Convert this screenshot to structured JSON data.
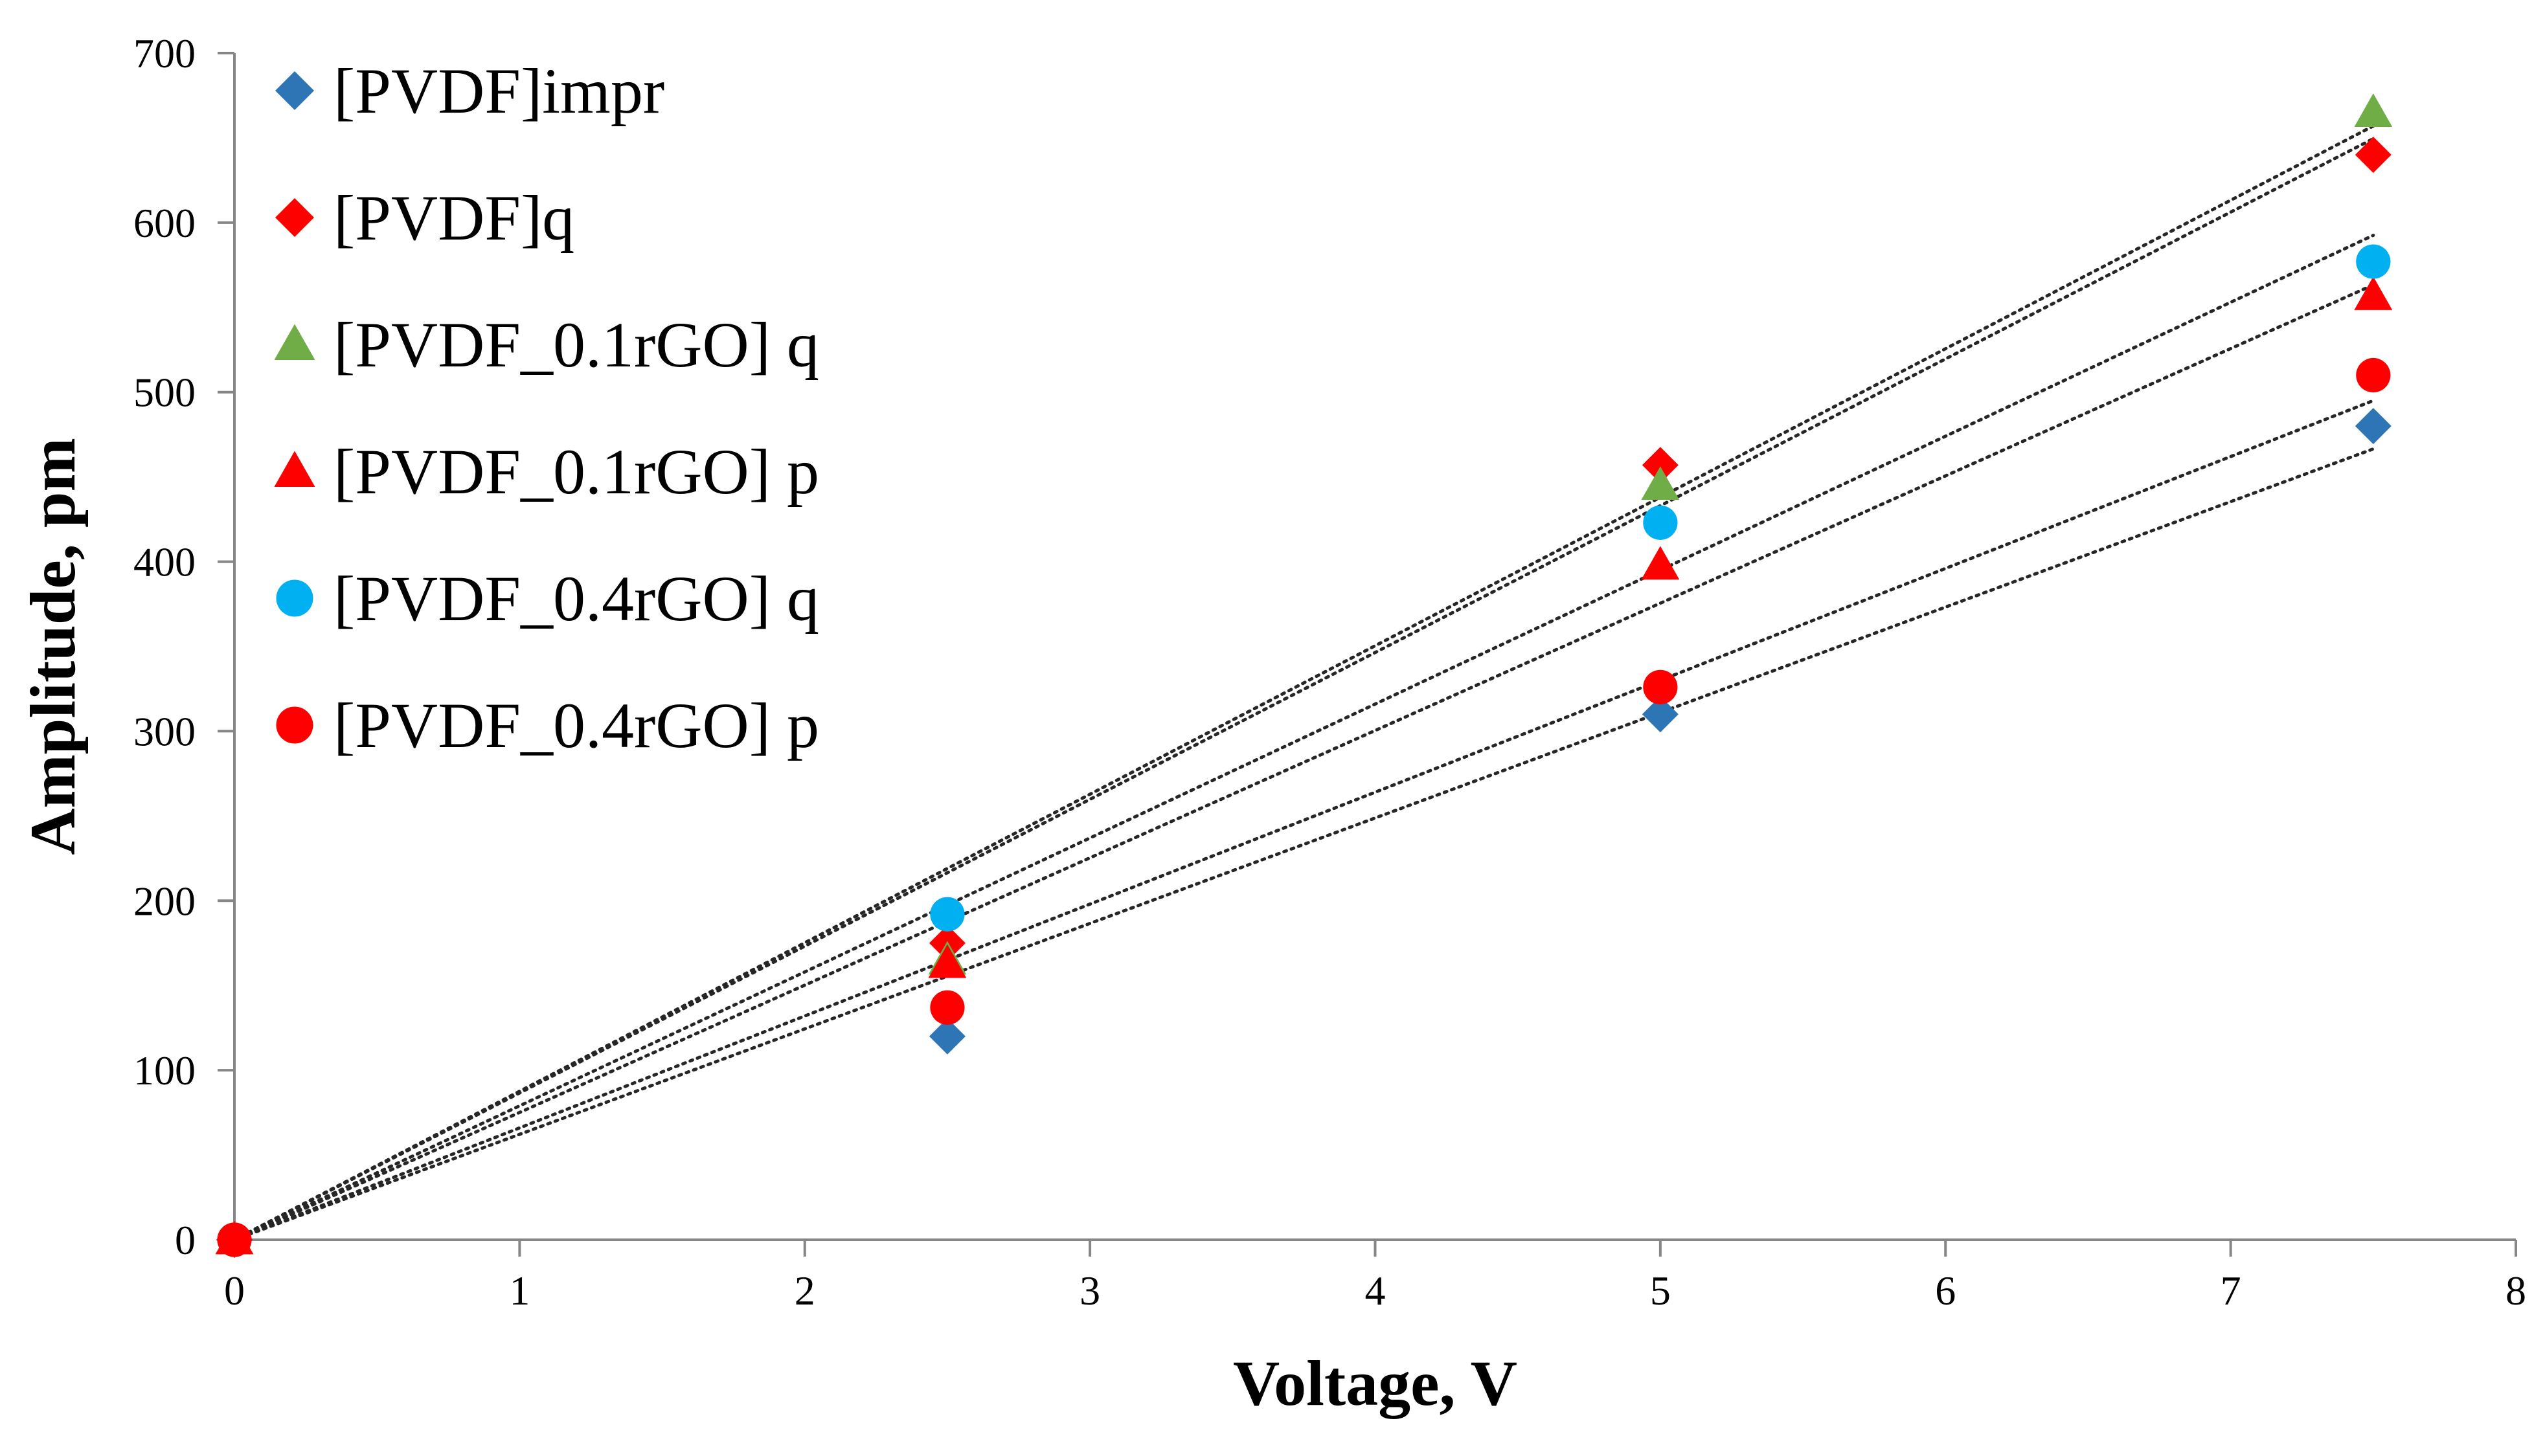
{
  "chart_data": {
    "type": "scatter",
    "title": "",
    "xlabel": "Voltage, V",
    "ylabel": "Amplitude, pm",
    "xlim": [
      0,
      8
    ],
    "ylim": [
      0,
      700
    ],
    "xticks": [
      0,
      1,
      2,
      3,
      4,
      5,
      6,
      7,
      8
    ],
    "yticks": [
      0,
      100,
      200,
      300,
      400,
      500,
      600,
      700
    ],
    "grid": false,
    "legend_position": "top-left",
    "x": [
      0,
      2.5,
      5,
      7.5
    ],
    "series": [
      {
        "name": "[PVDF]impr",
        "marker": "diamond",
        "color": "#2E75B6",
        "values": [
          0,
          120,
          310,
          480
        ],
        "trendline": {
          "type": "linear",
          "slope": 62.2,
          "intercept": 0
        }
      },
      {
        "name": "[PVDF]q",
        "marker": "diamond",
        "color": "#FF0000",
        "values": [
          0,
          175,
          457,
          640
        ],
        "trendline": {
          "type": "linear",
          "slope": 86.6,
          "intercept": 0
        }
      },
      {
        "name": "[PVDF_0.1rGO] q",
        "marker": "triangle",
        "color": "#70AD47",
        "values": [
          0,
          165,
          445,
          665
        ],
        "trendline": {
          "type": "linear",
          "slope": 87.6,
          "intercept": 0
        }
      },
      {
        "name": "[PVDF_0.1rGO] p",
        "marker": "triangle",
        "color": "#FF0000",
        "values": [
          0,
          163,
          398,
          557
        ],
        "trendline": {
          "type": "linear",
          "slope": 75.1,
          "intercept": 0
        }
      },
      {
        "name": "[PVDF_0.4rGO] q",
        "marker": "circle",
        "color": "#00B0F0",
        "values": [
          0,
          192,
          423,
          577
        ],
        "trendline": {
          "type": "linear",
          "slope": 79.0,
          "intercept": 0
        }
      },
      {
        "name": "[PVDF_0.4rGO] p",
        "marker": "circle",
        "color": "#FF0000",
        "values": [
          0,
          137,
          326,
          510
        ],
        "trendline": {
          "type": "linear",
          "slope": 66.0,
          "intercept": 0
        }
      }
    ]
  }
}
